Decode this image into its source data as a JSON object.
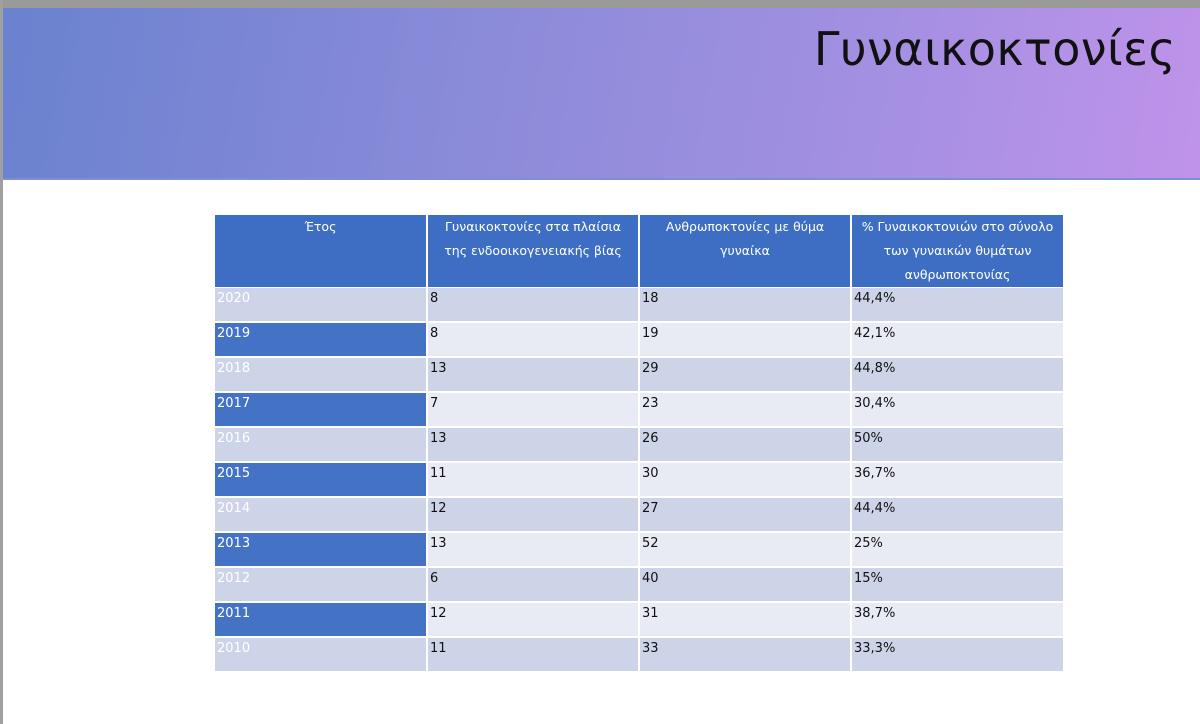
{
  "slide": {
    "title": "Γυναικοκτονίες"
  },
  "table": {
    "headers": [
      "Έτος",
      "Γυναικοκτονίες στα πλαίσια της ενδοοικογενειακής βίας",
      "Ανθρωποκτονίες με θύμα γυναίκα",
      "% Γυναικοκτονιών στο σύνολο των γυναικών θυμάτων ανθρωποκτονίας"
    ],
    "rows": [
      [
        "2020",
        "8",
        "18",
        "44,4%"
      ],
      [
        "2019",
        "8",
        "19",
        "42,1%"
      ],
      [
        "2018",
        "13",
        "29",
        "44,8%"
      ],
      [
        "2017",
        "7",
        "23",
        "30,4%"
      ],
      [
        "2016",
        "13",
        "26",
        "50%"
      ],
      [
        "2015",
        "11",
        "30",
        "36,7%"
      ],
      [
        "2014",
        "12",
        "27",
        "44,4%"
      ],
      [
        "2013",
        "13",
        "52",
        "25%"
      ],
      [
        "2012",
        "6",
        "40",
        "15%"
      ],
      [
        "2011",
        "12",
        "31",
        "38,7%"
      ],
      [
        "2010",
        "11",
        "33",
        "33,3%"
      ]
    ]
  },
  "colors": {
    "header_bg": "#3e6ec4",
    "row_dark": "#ced4e8",
    "row_light": "#e8eaf4",
    "year_highlight": "#4472c4"
  }
}
